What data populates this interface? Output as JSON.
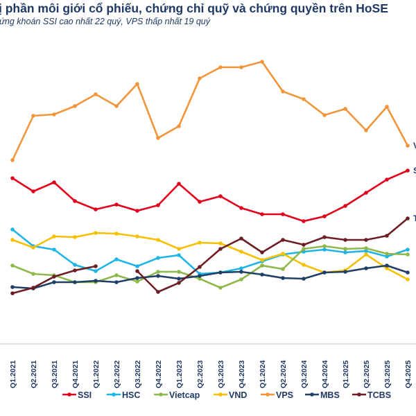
{
  "chart_data": {
    "type": "line",
    "title": "ị phần môi giới cổ phiếu, chứng chỉ quỹ và chứng quyền trên HoSE",
    "subtitle": "ứng khoán SSI cao nhất 22 quý, VPS thấp nhất 19 quý",
    "xlabel": "",
    "ylabel": "",
    "grid": false,
    "legend_position": "bottom",
    "categories": [
      "Q1.2021",
      "Q2.2021",
      "Q3.2021",
      "Q4.2021",
      "Q1.2022",
      "Q2.2022",
      "Q3.2022",
      "Q4.2022",
      "Q1.2023",
      "Q2.2023",
      "Q3.2023",
      "Q4.2023",
      "Q1.2024",
      "Q2.2024",
      "Q3.2024",
      "Q4.2024",
      "Q1.2025",
      "Q2.2025",
      "Q3.2025",
      "Q4.2025"
    ],
    "series": [
      {
        "name": "SSI",
        "color": "#e3001b",
        "values": [
          11.65,
          10.7,
          11.35,
          10.0,
          9.4,
          9.75,
          9.3,
          9.7,
          11.25,
          9.95,
          10.35,
          9.5,
          9.05,
          9.05,
          8.55,
          8.9,
          9.65,
          10.6,
          11.55,
          12.2
        ]
      },
      {
        "name": "HSC",
        "color": "#1fb4e6",
        "values": [
          7.95,
          6.75,
          6.5,
          5.4,
          4.95,
          5.8,
          5.3,
          5.9,
          6.1,
          4.75,
          4.85,
          5.15,
          5.65,
          6.15,
          6.35,
          6.5,
          6.3,
          6.4,
          6.0,
          6.5
        ]
      },
      {
        "name": "Vietcap",
        "color": "#8fb84a",
        "values": [
          5.35,
          4.75,
          4.65,
          4.15,
          4.15,
          4.65,
          4.2,
          4.9,
          4.9,
          4.4,
          3.75,
          4.35,
          5.35,
          5.1,
          6.55,
          6.75,
          6.55,
          6.6,
          6.2,
          6.15
        ]
      },
      {
        "name": "VND",
        "color": "#f5c000",
        "values": [
          7.2,
          6.65,
          7.45,
          7.4,
          7.7,
          7.65,
          7.45,
          7.2,
          6.55,
          7.0,
          6.95,
          6.35,
          5.75,
          6.2,
          5.4,
          4.85,
          5.0,
          6.15,
          5.15,
          4.35
        ]
      },
      {
        "name": "VPS",
        "color": "#f0953a",
        "values": [
          12.95,
          16.15,
          16.25,
          16.85,
          17.7,
          16.85,
          18.45,
          14.55,
          15.4,
          18.85,
          19.65,
          19.65,
          20.05,
          17.9,
          17.35,
          16.2,
          16.65,
          15.1,
          16.8,
          14.0
        ]
      },
      {
        "name": "MBS",
        "color": "#1f3f66",
        "values": [
          3.8,
          3.7,
          4.15,
          4.15,
          4.25,
          4.15,
          4.45,
          4.6,
          4.4,
          4.6,
          4.85,
          4.9,
          4.7,
          4.45,
          4.4,
          4.85,
          4.9,
          5.15,
          5.35,
          4.85
        ]
      },
      {
        "name": "TCBS",
        "color": "#6b1f24",
        "values": [
          3.35,
          3.75,
          4.55,
          5.0,
          5.3,
          null,
          4.95,
          3.45,
          4.1,
          5.25,
          6.55,
          7.3,
          6.3,
          7.2,
          6.85,
          7.4,
          7.2,
          7.2,
          7.5,
          8.75
        ]
      }
    ],
    "end_labels": [
      "VPS",
      "SSI",
      "TCBS"
    ]
  }
}
